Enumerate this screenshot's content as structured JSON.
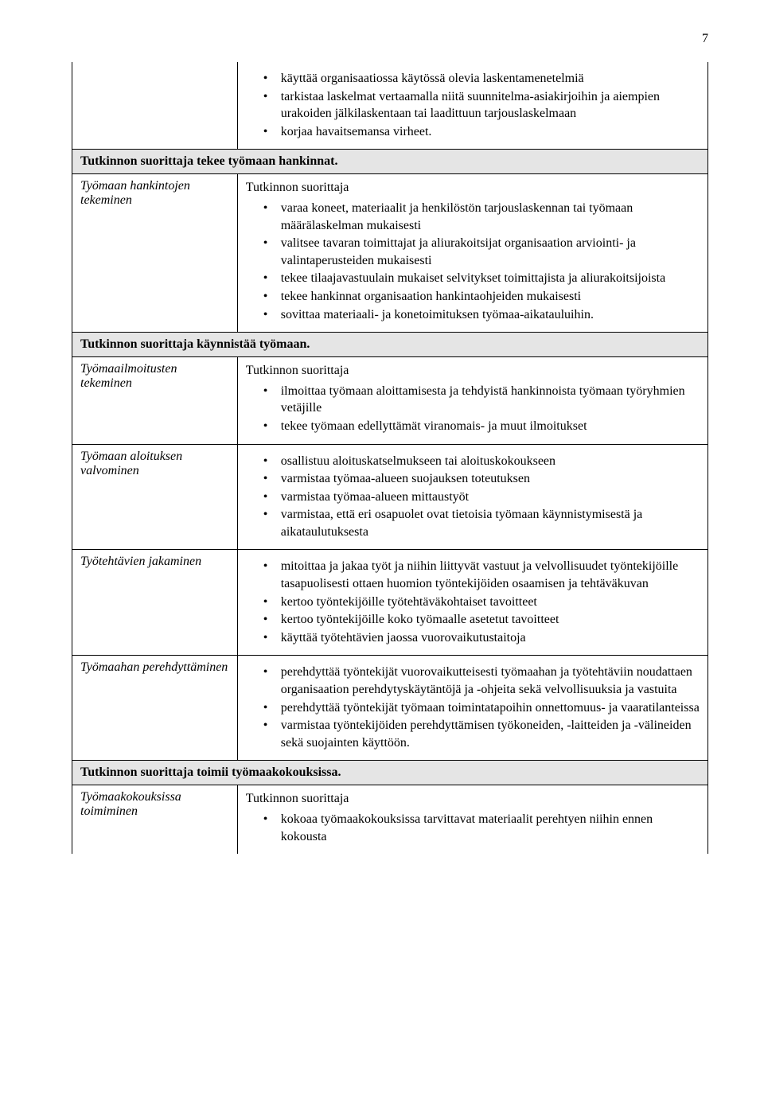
{
  "page_number": "7",
  "colors": {
    "section_bg": "#e5e5e5",
    "border": "#000000",
    "text": "#000000",
    "page_bg": "#ffffff"
  },
  "typography": {
    "font_family": "Garamond, Times New Roman, serif",
    "font_size_pt": 12
  },
  "rows": {
    "r0": {
      "items": [
        "käyttää organisaatiossa käytössä olevia laskentamenetelmiä",
        "tarkistaa laskelmat vertaamalla niitä suunnitelma-asiakirjoihin ja aiempien urakoiden jälkilaskentaan tai laadittuun tarjouslaskelmaan",
        "korjaa havaitsemansa virheet."
      ]
    },
    "s1": {
      "title": "Tutkinnon suorittaja tekee työmaan hankinnat."
    },
    "r1": {
      "left": "Työmaan hankintojen tekeminen",
      "intro": "Tutkinnon suorittaja",
      "items": [
        "varaa koneet, materiaalit ja henkilöstön tarjouslaskennan tai työmaan määrälaskelman mukaisesti",
        "valitsee tavaran toimittajat ja aliurakoitsijat organisaation arviointi- ja valintaperusteiden mukaisesti",
        "tekee tilaajavastuulain mukaiset selvitykset toimittajista ja aliurakoitsijoista",
        "tekee hankinnat organisaation hankintaohjeiden mukaisesti",
        "sovittaa materiaali- ja konetoimituksen työmaa-aikatauluihin."
      ]
    },
    "s2": {
      "title": "Tutkinnon suorittaja käynnistää työmaan."
    },
    "r2": {
      "left": "Työmaailmoitusten tekeminen",
      "intro": "Tutkinnon suorittaja",
      "items": [
        "ilmoittaa työmaan aloittamisesta ja tehdyistä hankinnoista työmaan työryhmien vetäjille",
        "tekee työmaan edellyttämät viranomais- ja muut ilmoitukset"
      ]
    },
    "r3": {
      "left": "Työmaan aloituksen valvominen",
      "items": [
        "osallistuu aloituskatselmukseen tai aloituskokoukseen",
        "varmistaa työmaa-alueen suojauksen toteutuksen",
        "varmistaa työmaa-alueen mittaustyöt",
        "varmistaa, että eri osapuolet ovat tietoisia työmaan käynnistymisestä ja aikataulutuksesta"
      ]
    },
    "r4": {
      "left": "Työtehtävien jakaminen",
      "items": [
        "mitoittaa ja jakaa työt ja niihin liittyvät vastuut ja velvollisuudet työntekijöille tasapuolisesti ottaen huomion työntekijöiden osaamisen ja tehtäväkuvan",
        "kertoo työntekijöille työtehtäväkohtaiset tavoitteet",
        "kertoo työntekijöille koko työmaalle asetetut tavoitteet",
        "käyttää työtehtävien jaossa vuorovaikutustaitoja"
      ]
    },
    "r5": {
      "left": "Työmaahan perehdyttäminen",
      "items": [
        "perehdyttää työntekijät vuorovaikutteisesti työmaahan ja työtehtäviin noudattaen organisaation perehdytyskäytäntöjä ja -ohjeita sekä velvollisuuksia ja vastuita",
        "perehdyttää työntekijät työmaan toimintatapoihin onnettomuus- ja vaaratilanteissa",
        "varmistaa työntekijöiden perehdyttämisen työkoneiden, -laitteiden ja -välineiden sekä suojainten käyttöön."
      ]
    },
    "s3": {
      "title": "Tutkinnon suorittaja toimii työmaakokouksissa."
    },
    "r6": {
      "left": "Työmaakokouksissa toimiminen",
      "intro": "Tutkinnon suorittaja",
      "items": [
        "kokoaa työmaakokouksissa tarvittavat materiaalit perehtyen niihin ennen kokousta"
      ]
    }
  }
}
